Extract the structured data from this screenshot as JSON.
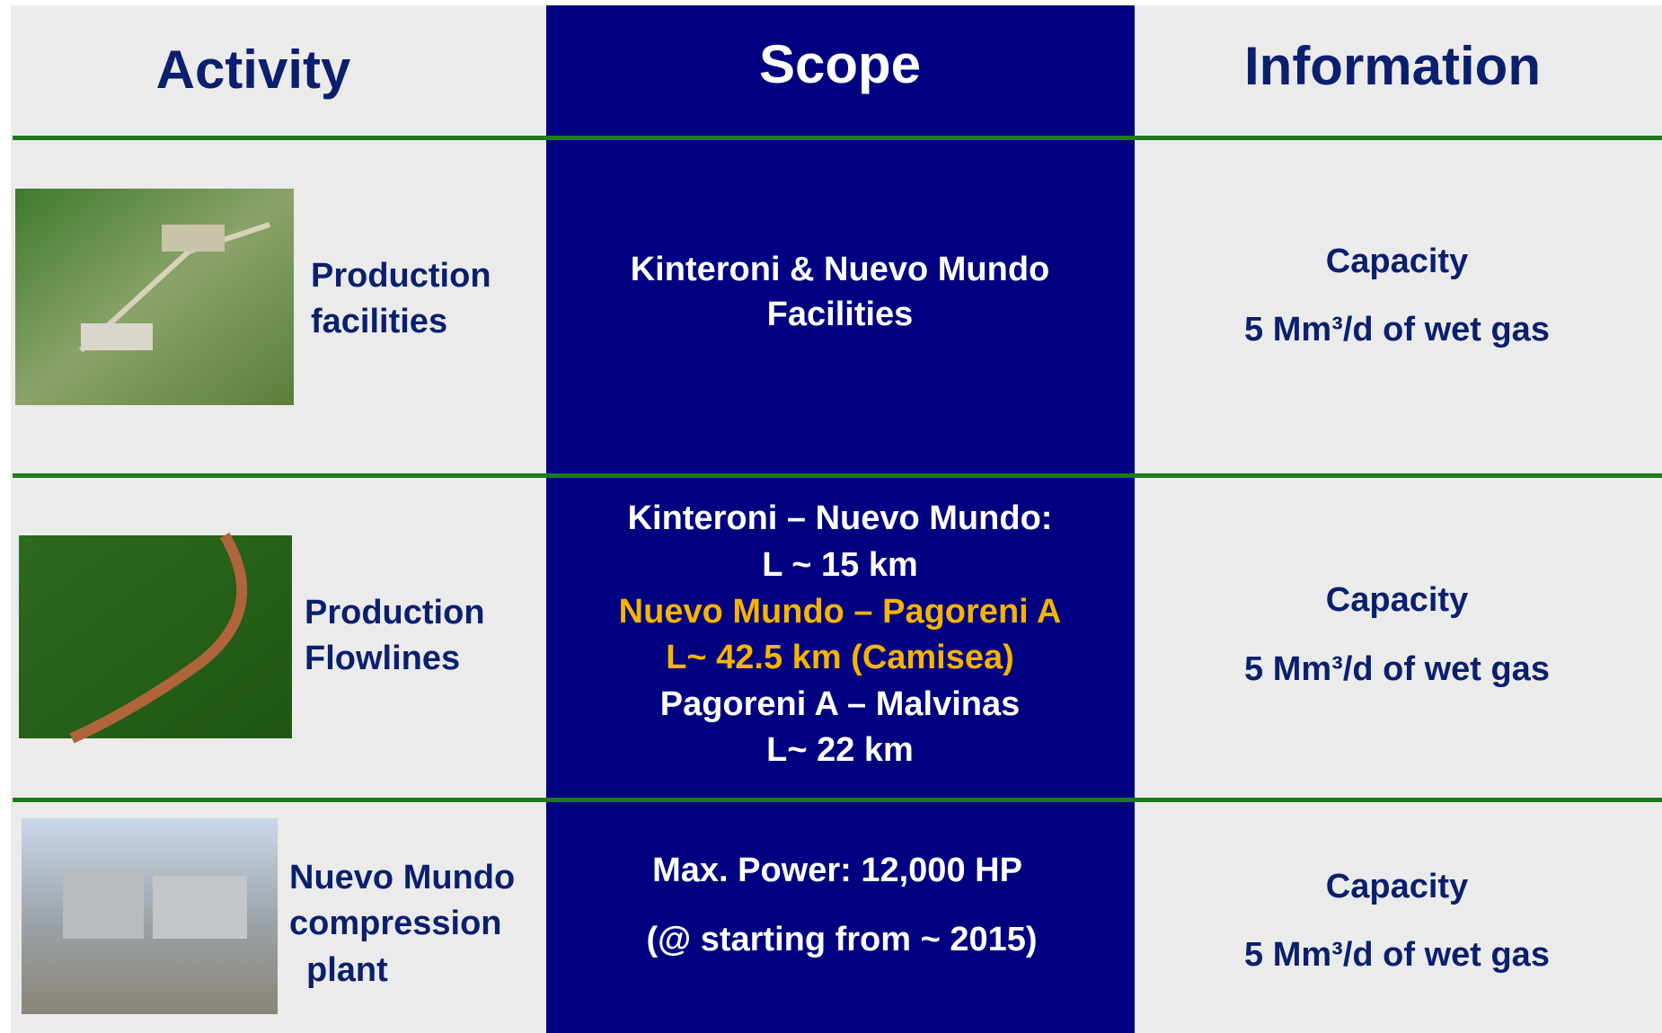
{
  "header": {
    "columns": [
      "Activity",
      "Scope",
      "Information"
    ]
  },
  "rows": [
    {
      "activity": [
        "Production",
        "facilities"
      ],
      "scope": [
        "Kinteroni & Nuevo Mundo",
        "Facilities"
      ],
      "info": [
        "Capacity",
        "5 Mm³/d of wet gas"
      ]
    },
    {
      "activity": [
        "Production",
        "Flowlines"
      ],
      "scope": [
        "Kinteroni – Nuevo Mundo:",
        "L ~ 15 km",
        "Nuevo Mundo – Pagoreni A",
        "L~ 42.5 km (Camisea)",
        "Pagoreni A – Malvinas",
        "L~ 22 km"
      ],
      "info": [
        "Capacity",
        "5 Mm³/d of wet gas"
      ]
    },
    {
      "activity": [
        "Nuevo Mundo",
        "compression",
        "plant"
      ],
      "scope": [
        "Max. Power: 12,000 HP",
        "(@ starting from ~ 2015)"
      ],
      "info": [
        "Capacity",
        "5 Mm³/d of wet gas"
      ]
    }
  ]
}
